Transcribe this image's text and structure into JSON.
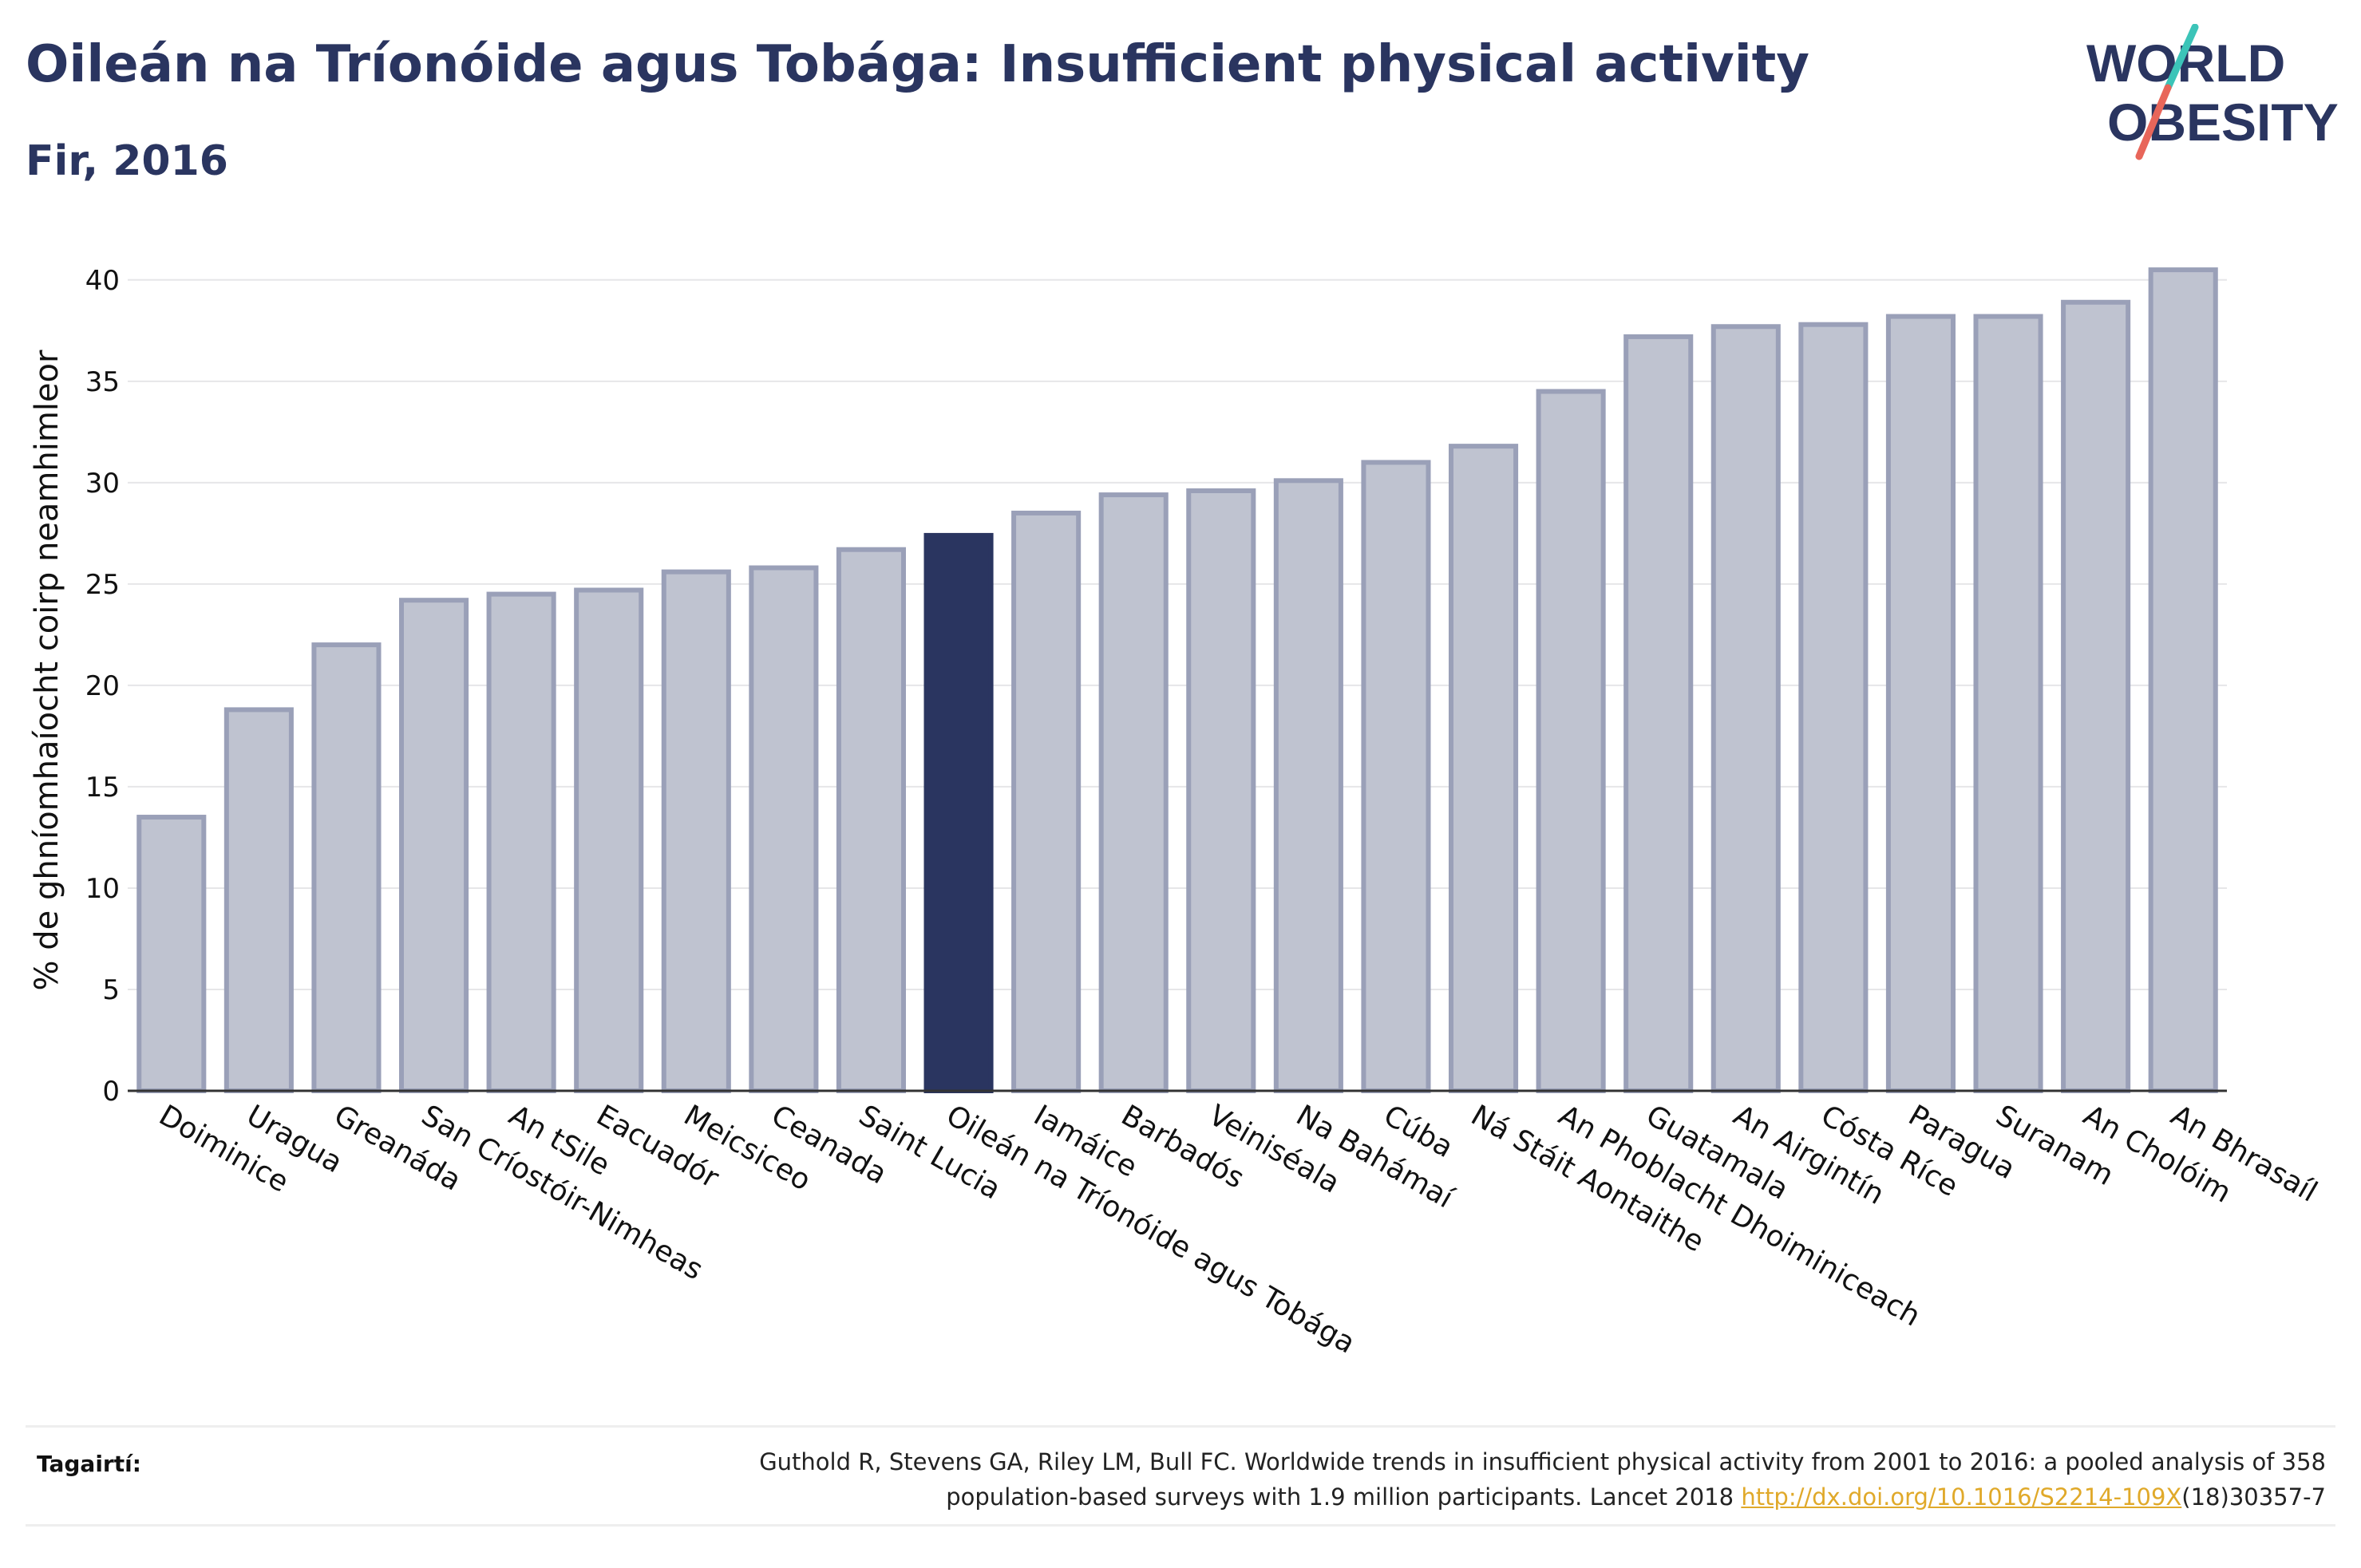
{
  "header": {
    "title": "Oileán na Tríonóide agus Tobága: Insufficient physical activity",
    "subtitle": "Fir, 2016"
  },
  "logo": {
    "line1": "WORLD",
    "line2": "OBESITY",
    "accent_colors": [
      "#3cc4b8",
      "#e8665a"
    ]
  },
  "colors": {
    "bar_default": "#bfc3d0",
    "bar_outline": "#9aa0b8",
    "bar_highlight": "#2a3560",
    "title": "#2a3560",
    "link": "#e0a92a"
  },
  "chart_data": {
    "type": "bar",
    "ylabel": "% de ghníomhaíocht coirp neamhimleor",
    "xlabel": "",
    "ylim": [
      0,
      42
    ],
    "yticks": [
      0,
      5,
      10,
      15,
      20,
      25,
      30,
      35,
      40
    ],
    "grid": true,
    "highlight_category": "Oileán na Tríonóide agus Tobága",
    "categories": [
      "Doiminice",
      "Uragua",
      "Greanáda",
      "San Críostóir-Nimheas",
      "An tSile",
      "Eacuadór",
      "Meicsiceo",
      "Ceanada",
      "Saint Lucia",
      "Oileán na Tríonóide agus Tobága",
      "Iamáice",
      "Barbadós",
      "Veiniséala",
      "Na Bahámaí",
      "Cúba",
      "Ná Stáit Aontaithe",
      "An Phoblacht Dhoiminiceach",
      "Guatamala",
      "An Airgintín",
      "Cósta Ríce",
      "Paragua",
      "Suranam",
      "An Cholóim",
      "An Bhrasaíl"
    ],
    "values": [
      13.5,
      18.8,
      22.0,
      24.2,
      24.5,
      24.7,
      25.6,
      25.8,
      26.7,
      27.4,
      28.5,
      29.4,
      29.6,
      30.1,
      31.0,
      31.8,
      34.5,
      37.2,
      37.7,
      37.8,
      38.2,
      38.2,
      38.9,
      40.5
    ]
  },
  "references": {
    "label": "Tagairtí:",
    "text_line1": "Guthold R, Stevens GA, Riley LM, Bull FC. Worldwide trends in insufficient physical activity from 2001 to 2016: a pooled analysis of 358",
    "text_line2_prefix": "population-based surveys with 1.9 million participants. Lancet 2018 ",
    "link": "http://dx.doi.org/10.1016/S2214-109X",
    "text_line2_suffix": "(18)30357-7"
  }
}
